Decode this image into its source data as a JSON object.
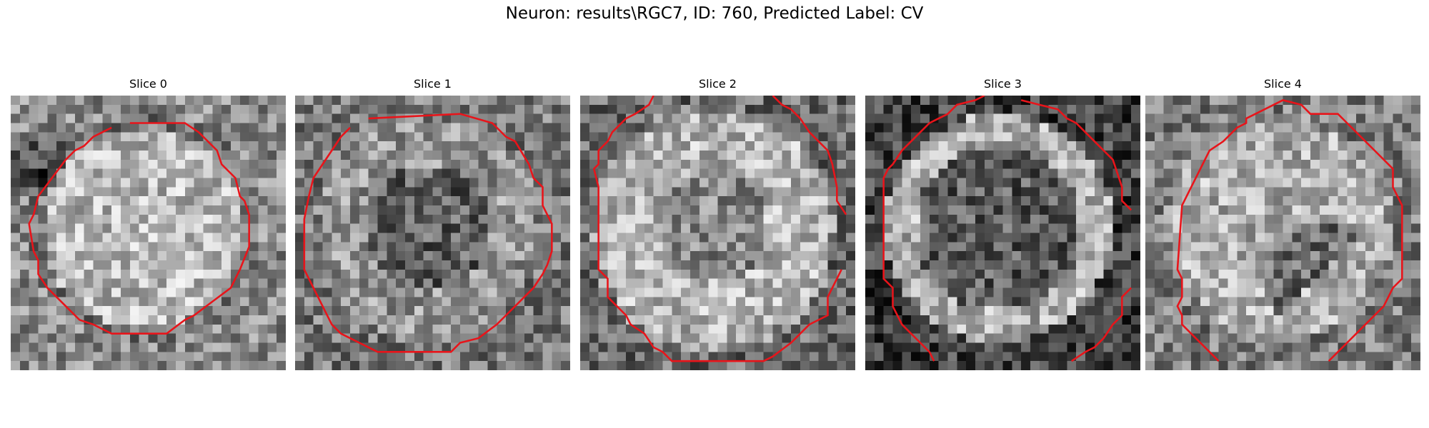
{
  "figure": {
    "title": "Neuron: results\\RGC7, ID: 760, Predicted Label: CV",
    "contour_color": "#e8141a",
    "colormap": "grayscale"
  },
  "panels": [
    {
      "title": "Slice 0"
    },
    {
      "title": "Slice 1"
    },
    {
      "title": "Slice 2"
    },
    {
      "title": "Slice 3"
    },
    {
      "title": "Slice 4"
    }
  ]
}
